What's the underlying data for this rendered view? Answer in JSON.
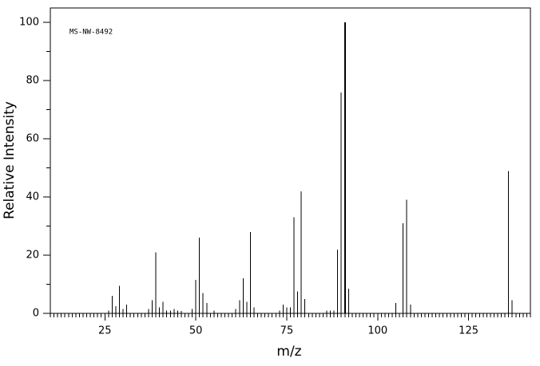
{
  "chart_data": {
    "type": "stem",
    "annotation": "MS-NW-8492",
    "x_label": "m/z",
    "y_label": "Relative Intensity",
    "color": "#000000",
    "x": [
      26,
      27,
      28,
      29,
      30,
      31,
      37,
      38,
      39,
      40,
      41,
      42,
      43,
      44,
      45,
      46,
      49,
      50,
      51,
      52,
      53,
      55,
      61,
      62,
      63,
      64,
      65,
      66,
      73,
      74,
      75,
      76,
      77,
      78,
      79,
      80,
      86,
      87,
      88,
      89,
      90,
      91,
      92,
      105,
      107,
      108,
      109,
      136,
      137
    ],
    "values": [
      1,
      6,
      2.5,
      9.5,
      1.5,
      3,
      1.5,
      4.5,
      21,
      2,
      4,
      1,
      1,
      1.5,
      1,
      0.8,
      1.5,
      11.5,
      26,
      7,
      3.5,
      1,
      1.5,
      4.5,
      12,
      4,
      28,
      2,
      1,
      3,
      2,
      2,
      33,
      7.5,
      42,
      5,
      1,
      1,
      1,
      22,
      76,
      100,
      8.5,
      3.5,
      31,
      39,
      3,
      49,
      4.5
    ],
    "xlim": [
      10,
      142
    ],
    "ylim": [
      0,
      105
    ],
    "xticks": [
      25,
      50,
      75,
      100,
      125
    ],
    "yticks": [
      0,
      20,
      40,
      60,
      80,
      100
    ],
    "x_minor_step": 1,
    "y_minor_step": 10
  }
}
